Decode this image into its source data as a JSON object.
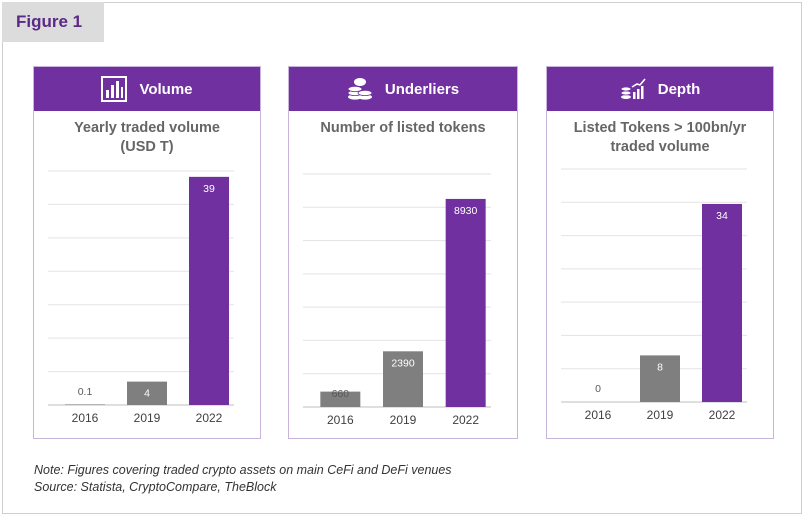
{
  "figure_label": "Figure 1",
  "panels": [
    {
      "header": "Volume",
      "icon": "bar-chart-icon",
      "subtitle_lines": [
        "Yearly traded volume",
        "(USD T)"
      ]
    },
    {
      "header": "Underliers",
      "icon": "coin-stack-icon",
      "subtitle_lines": [
        "Number of listed tokens"
      ]
    },
    {
      "header": "Depth",
      "icon": "growth-chart-icon",
      "subtitle_lines": [
        "Listed Tokens > 100bn/yr",
        "traded volume"
      ]
    }
  ],
  "chart_data": [
    {
      "type": "bar",
      "title": "Yearly traded volume (USD T)",
      "categories": [
        "2016",
        "2019",
        "2022"
      ],
      "values": [
        0.1,
        4,
        39
      ],
      "labels": [
        "0.1",
        "4",
        "39"
      ],
      "ylim": [
        0,
        40
      ],
      "grid": true,
      "colors": [
        "#7f7f7f",
        "#7f7f7f",
        "#7030a0"
      ]
    },
    {
      "type": "bar",
      "title": "Number of listed tokens",
      "categories": [
        "2016",
        "2019",
        "2022"
      ],
      "values": [
        660,
        2390,
        8930
      ],
      "labels": [
        "660",
        "2390",
        "8930"
      ],
      "ylim": [
        0,
        10000
      ],
      "grid": true,
      "colors": [
        "#7f7f7f",
        "#7f7f7f",
        "#7030a0"
      ]
    },
    {
      "type": "bar",
      "title": "Listed Tokens > 100bn/yr traded volume",
      "categories": [
        "2016",
        "2019",
        "2022"
      ],
      "values": [
        0,
        8,
        34
      ],
      "labels": [
        "0",
        "8",
        "34"
      ],
      "ylim": [
        0,
        40
      ],
      "grid": true,
      "colors": [
        "#7f7f7f",
        "#7f7f7f",
        "#7030a0"
      ]
    }
  ],
  "note": {
    "line1": "Note: Figures covering traded crypto assets on main CeFi and DeFi venues",
    "line2": "Source: Statista, CryptoCompare, TheBlock"
  }
}
